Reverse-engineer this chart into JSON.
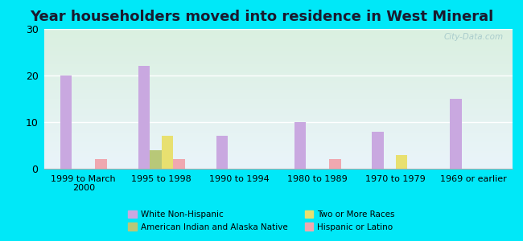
{
  "title": "Year householders moved into residence in West Mineral",
  "categories": [
    "1999 to March\n2000",
    "1995 to 1998",
    "1990 to 1994",
    "1980 to 1989",
    "1970 to 1979",
    "1969 or earlier"
  ],
  "series": {
    "White Non-Hispanic": [
      20,
      22,
      7,
      10,
      8,
      15
    ],
    "American Indian and Alaska Native": [
      0,
      4,
      0,
      0,
      0,
      0
    ],
    "Two or More Races": [
      0,
      7,
      0,
      0,
      3,
      0
    ],
    "Hispanic or Latino": [
      2,
      2,
      0,
      2,
      0,
      0
    ]
  },
  "colors": {
    "White Non-Hispanic": "#c9a8e0",
    "American Indian and Alaska Native": "#b8c878",
    "Two or More Races": "#e8e070",
    "Hispanic or Latino": "#f0a8b0"
  },
  "ylim": [
    0,
    30
  ],
  "yticks": [
    0,
    10,
    20,
    30
  ],
  "background_outer": "#00e8f8",
  "bar_width": 0.15,
  "title_fontsize": 13,
  "legend_entries": [
    "White Non-Hispanic",
    "American Indian and Alaska Native",
    "Two or More Races",
    "Hispanic or Latino"
  ]
}
